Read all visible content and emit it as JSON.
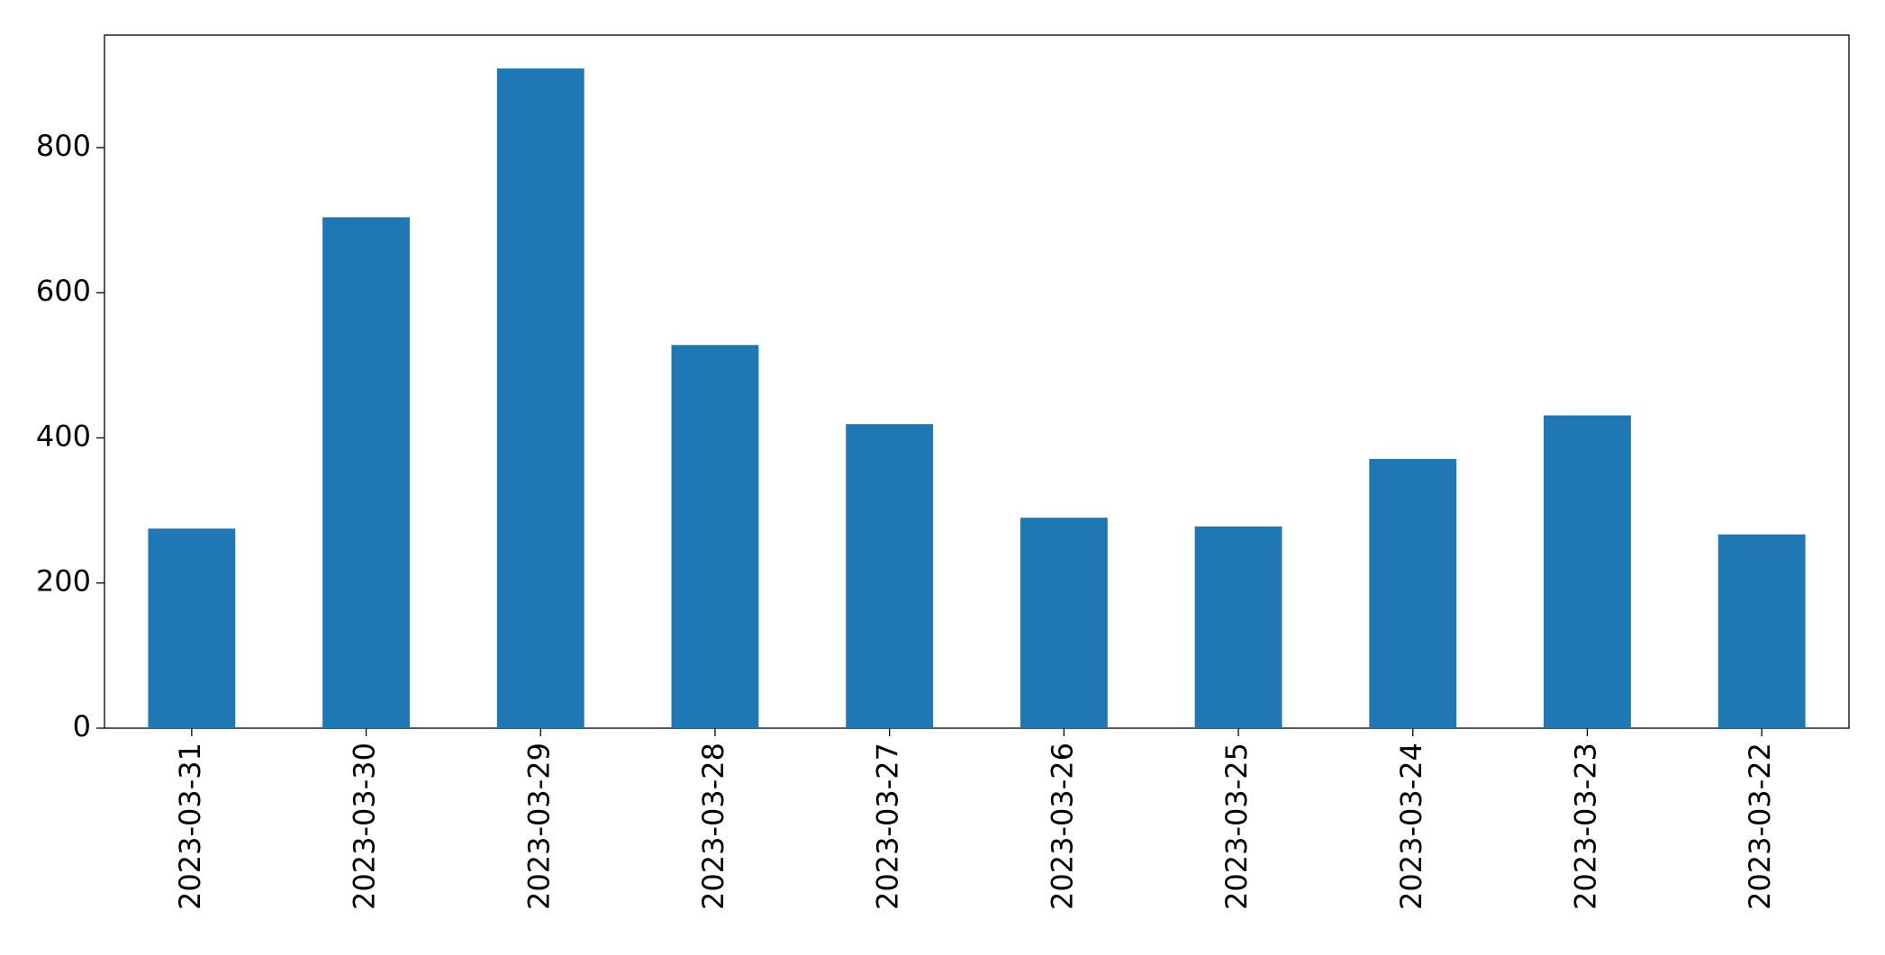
{
  "chart_data": {
    "type": "bar",
    "categories": [
      "2023-03-31",
      "2023-03-30",
      "2023-03-29",
      "2023-03-28",
      "2023-03-27",
      "2023-03-26",
      "2023-03-25",
      "2023-03-24",
      "2023-03-23",
      "2023-03-22"
    ],
    "values": [
      275,
      704,
      909,
      528,
      419,
      290,
      278,
      371,
      431,
      267
    ],
    "color": "#1f77b4",
    "ylim": [
      0,
      955
    ],
    "yticks": [
      0,
      200,
      400,
      600,
      800
    ],
    "grid": false
  }
}
